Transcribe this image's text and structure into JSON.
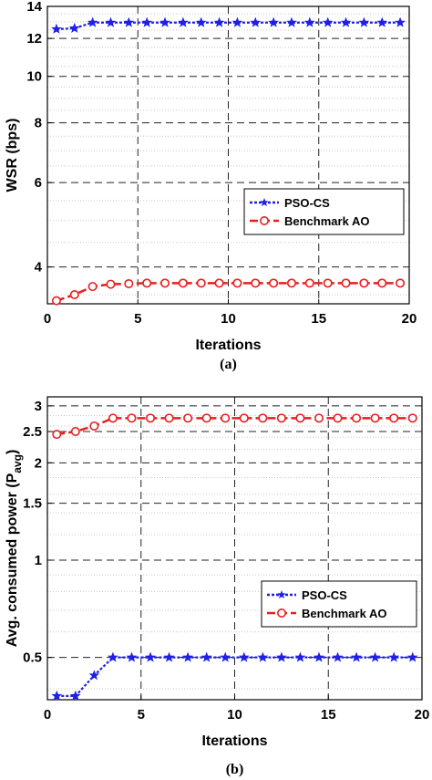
{
  "chart_data": [
    {
      "type": "line",
      "caption": "(a)",
      "xlabel": "Iterations",
      "ylabel": "WSR (bps)",
      "xlim": [
        0,
        20
      ],
      "ylim": [
        3.35,
        14
      ],
      "yscale": "log",
      "grid": true,
      "legend_position": "center-right",
      "xticks": [
        0,
        5,
        10,
        15,
        20
      ],
      "yticks": [
        4,
        6,
        8,
        10,
        12,
        14
      ],
      "x": [
        0.5,
        1.5,
        2.5,
        3.5,
        4.5,
        5.5,
        6.5,
        7.5,
        8.5,
        9.5,
        10.5,
        11.5,
        12.5,
        13.5,
        14.5,
        15.5,
        16.5,
        17.5,
        18.5,
        19.5
      ],
      "series": [
        {
          "name": "PSO-CS",
          "color": "#1f1fe6",
          "marker": "star",
          "values": [
            12.55,
            12.6,
            12.95,
            12.95,
            12.95,
            12.95,
            12.95,
            12.95,
            12.95,
            12.95,
            12.95,
            12.95,
            12.95,
            12.95,
            12.95,
            12.95,
            12.95,
            12.95,
            12.95,
            12.95
          ]
        },
        {
          "name": "Benchmark AO",
          "color": "#e61f1f",
          "marker": "circle",
          "values": [
            3.4,
            3.5,
            3.64,
            3.68,
            3.69,
            3.7,
            3.7,
            3.7,
            3.7,
            3.7,
            3.7,
            3.7,
            3.7,
            3.7,
            3.7,
            3.7,
            3.7,
            3.7,
            3.7,
            3.7
          ]
        }
      ]
    },
    {
      "type": "line",
      "caption": "(b)",
      "xlabel": "Iterations",
      "ylabel": "Avg. consumed power (P",
      "ylabel_sub": "avg",
      "ylabel_end": ")",
      "xlim": [
        0,
        20
      ],
      "ylim": [
        0.37,
        3.2
      ],
      "yscale": "log",
      "grid": true,
      "legend_position": "lower-right",
      "xticks": [
        0,
        5,
        10,
        15,
        20
      ],
      "yticks": [
        0.5,
        1,
        1.5,
        2,
        2.5,
        3
      ],
      "x": [
        0.5,
        1.5,
        2.5,
        3.5,
        4.5,
        5.5,
        6.5,
        7.5,
        8.5,
        9.5,
        10.5,
        11.5,
        12.5,
        13.5,
        14.5,
        15.5,
        16.5,
        17.5,
        18.5,
        19.5
      ],
      "series": [
        {
          "name": "PSO-CS",
          "color": "#1f1fe6",
          "marker": "star",
          "values": [
            0.38,
            0.38,
            0.44,
            0.5,
            0.5,
            0.5,
            0.5,
            0.5,
            0.5,
            0.5,
            0.5,
            0.5,
            0.5,
            0.5,
            0.5,
            0.5,
            0.5,
            0.5,
            0.5,
            0.5
          ]
        },
        {
          "name": "Benchmark AO",
          "color": "#e61f1f",
          "marker": "circle",
          "values": [
            2.45,
            2.5,
            2.6,
            2.75,
            2.75,
            2.75,
            2.75,
            2.75,
            2.75,
            2.75,
            2.75,
            2.75,
            2.75,
            2.75,
            2.75,
            2.75,
            2.75,
            2.75,
            2.75,
            2.75
          ]
        }
      ]
    }
  ]
}
